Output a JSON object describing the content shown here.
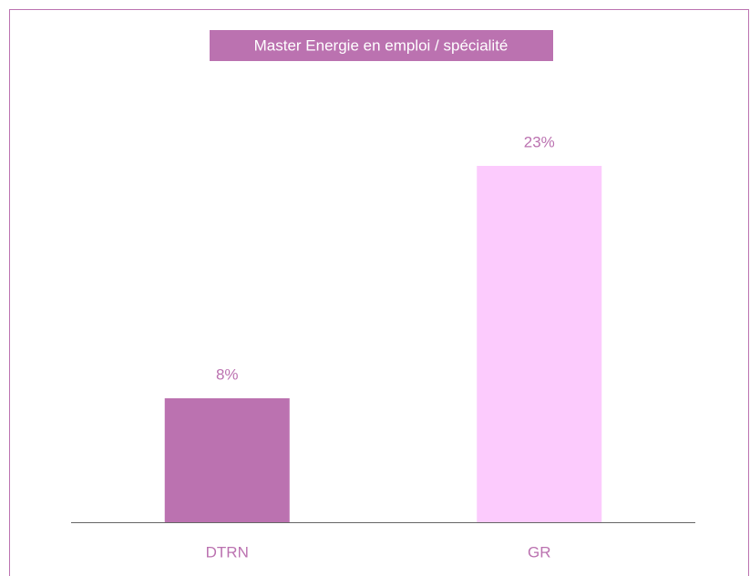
{
  "chart_data": {
    "type": "bar",
    "title": "Master Energie en emploi / spécialité",
    "categories": [
      "DTRN",
      "GR"
    ],
    "values": [
      8,
      23
    ],
    "value_labels": [
      "8%",
      "23%"
    ],
    "colors": [
      "#bb72b0",
      "#fccbfd"
    ]
  }
}
